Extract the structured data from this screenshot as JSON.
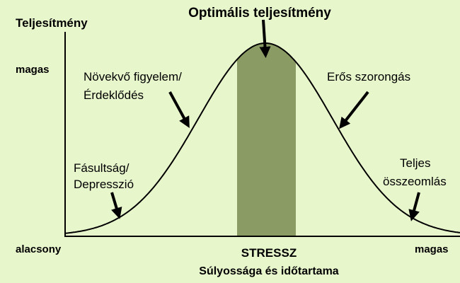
{
  "title": "Optimális teljesítmény",
  "y_axis": {
    "label": "Teljesítmény",
    "high": "magas",
    "low": "alacsony"
  },
  "x_axis": {
    "label": "STRESSZ",
    "sublabel": "Súlyossága és időtartama",
    "high": "magas"
  },
  "annotations": [
    {
      "lines": [
        "Fásultság/",
        "Depresszió"
      ]
    },
    {
      "lines": [
        "Növekvő figyelem/",
        "Érdeklődés"
      ]
    },
    {
      "lines": [
        "Erős szorongás"
      ]
    },
    {
      "lines": [
        "Teljes",
        "összeomlás"
      ]
    }
  ]
}
